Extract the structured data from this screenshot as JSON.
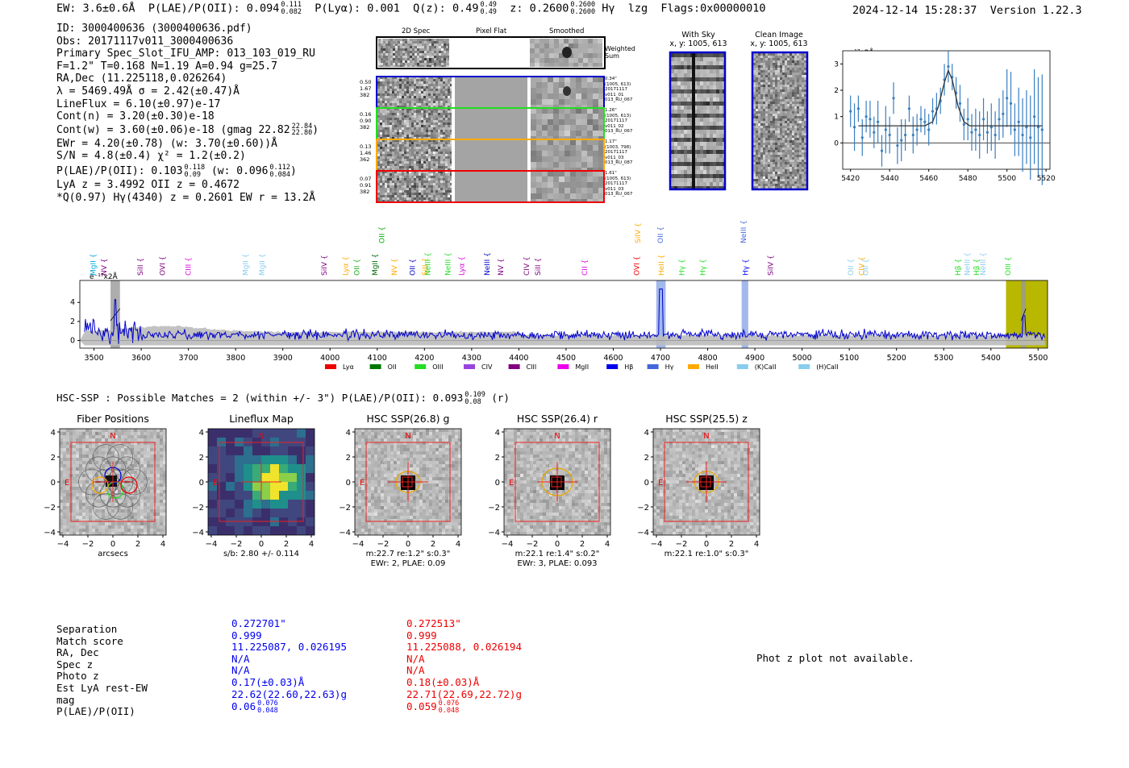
{
  "header": {
    "ew": "EW: 3.6±0.6Å",
    "plae_label": "P(LAE)/P(OII): 0.094",
    "plae_sup": "0.111",
    "plae_sub": "0.082",
    "plya": "P(Lyα): 0.001",
    "qz_label": "Q(z): 0.49",
    "qz_sup": "0.49",
    "qz_sub": "0.49",
    "z_label": "z: 0.2600",
    "z_sup": "0.2600",
    "z_sub": "0.2600",
    "line_name": "Hγ",
    "method": "lzg",
    "flags": "Flags:0x00000010",
    "datetime": "2024-12-14 15:28:37",
    "version": "Version 1.22.3"
  },
  "info_lines": [
    "ID: 3000400636 (3000400636.pdf)",
    "Obs: 20171117v011_3000400636",
    "Primary Spec_Slot_IFU_AMP: 013_103_019_RU",
    "F=1.2\"  T=0.168  N=1.19  A=0.94  g=25.7",
    "RA,Dec (11.225118,0.026264)",
    "λ = 5469.49Å  σ = 2.42(±0.47)Å",
    "LineFlux = 6.10(±0.97)e-17",
    "Cont(n) = 3.20(±0.30)e-18"
  ],
  "info_cont_w": {
    "text": "Cont(w) = 3.60(±0.06)e-18 (gmag 22.82",
    "sup": "22.84",
    "sub": "22.80",
    "close": ")"
  },
  "info_ewr": "EWr = 4.20(±0.78) (w: 3.70(±0.60))Å",
  "info_sn": "S/N = 4.8(±0.4)  χ² = 1.2(±0.2)",
  "info_plae": {
    "text": "P(LAE)/P(OII): 0.103",
    "sup": "0.118",
    "sub": "0.09",
    "w": "(w: 0.096",
    "w_sup": "0.112",
    "w_sub": "0.084",
    "close": ")"
  },
  "info_lya": "LyA z = 3.4992  OII z = 0.4672",
  "info_q": "*Q(0.97) Hγ(4340) z = 0.2601  EW r = 13.2Å",
  "cutout_titles": {
    "spec2d": "2D Spec",
    "pixflat": "Pixel Flat",
    "smoothed": "Smoothed",
    "weighted": "Weighted",
    "sum": "Sum"
  },
  "fibers": [
    {
      "left": [
        "0.50",
        "1.67",
        "382"
      ],
      "right": [
        "0.34\"",
        "(1005, 613)",
        "20171117",
        "v011_01",
        "013_RU_067"
      ],
      "color": "#0000cc"
    },
    {
      "left": [
        "0.16",
        "0.90",
        "382"
      ],
      "right": [
        "1.26\"",
        "(1005, 613)",
        "20171117",
        "v011_02",
        "013_RU_067"
      ],
      "color": "#22dd22"
    },
    {
      "left": [
        "0.13",
        "1.46",
        "362"
      ],
      "right": [
        "1.17\"",
        "(1003, 798)",
        "20171117",
        "v011_03",
        "013_RU_087"
      ],
      "color": "#ffaa00"
    },
    {
      "left": [
        "0.07",
        "0.91",
        "382"
      ],
      "right": [
        "1.61\"",
        "(1005, 613)",
        "20171117",
        "v011_03",
        "013_RU_067"
      ],
      "color": "#ee0000"
    }
  ],
  "sky_titles": {
    "with_sky": "With Sky",
    "with_sky_xy": "x, y: 1005, 613",
    "clean": "Clean Image",
    "clean_xy": "x, y: 1005, 613"
  },
  "zoom_unit": "e⁻¹⁷x2Å",
  "zoom_chart_data": {
    "type": "line",
    "xlim": [
      5416,
      5522
    ],
    "ylim": [
      -1.0,
      3.5
    ],
    "xticks": [
      5420,
      5440,
      5460,
      5480,
      5500,
      5520
    ],
    "yticks": [
      0,
      1,
      2,
      3
    ],
    "model": [
      [
        5424,
        0.65
      ],
      [
        5458,
        0.65
      ],
      [
        5462,
        0.8
      ],
      [
        5465,
        1.4
      ],
      [
        5468,
        2.3
      ],
      [
        5470,
        2.75
      ],
      [
        5472,
        2.4
      ],
      [
        5475,
        1.4
      ],
      [
        5478,
        0.8
      ],
      [
        5481,
        0.65
      ],
      [
        5518,
        0.65
      ]
    ],
    "points": [
      [
        5420,
        1.2,
        0.6
      ],
      [
        5422,
        0.6,
        0.9
      ],
      [
        5424,
        1.3,
        0.5
      ],
      [
        5426,
        0.2,
        0.7
      ],
      [
        5428,
        1.0,
        0.6
      ],
      [
        5430,
        0.9,
        0.7
      ],
      [
        5432,
        0.4,
        0.6
      ],
      [
        5434,
        0.8,
        0.8
      ],
      [
        5436,
        -0.3,
        0.6
      ],
      [
        5438,
        0.5,
        0.9
      ],
      [
        5440,
        0.3,
        0.7
      ],
      [
        5442,
        1.7,
        0.6
      ],
      [
        5444,
        -0.1,
        0.7
      ],
      [
        5446,
        0.1,
        0.8
      ],
      [
        5448,
        0.3,
        0.6
      ],
      [
        5450,
        1.3,
        0.5
      ],
      [
        5452,
        0.3,
        0.7
      ],
      [
        5454,
        0.5,
        0.6
      ],
      [
        5456,
        0.9,
        0.5
      ],
      [
        5458,
        0.8,
        0.5
      ],
      [
        5460,
        0.5,
        0.6
      ],
      [
        5462,
        1.2,
        0.5
      ],
      [
        5464,
        1.3,
        0.6
      ],
      [
        5466,
        1.6,
        0.5
      ],
      [
        5468,
        2.4,
        0.6
      ],
      [
        5470,
        2.9,
        0.6
      ],
      [
        5472,
        2.5,
        0.5
      ],
      [
        5474,
        1.9,
        0.6
      ],
      [
        5476,
        1.5,
        0.7
      ],
      [
        5478,
        0.7,
        0.6
      ],
      [
        5480,
        0.9,
        0.8
      ],
      [
        5482,
        0.4,
        0.7
      ],
      [
        5484,
        0.5,
        0.8
      ],
      [
        5486,
        0.3,
        0.9
      ],
      [
        5488,
        0.9,
        0.8
      ],
      [
        5490,
        0.4,
        0.8
      ],
      [
        5492,
        0.6,
        0.9
      ],
      [
        5494,
        0.3,
        0.9
      ],
      [
        5496,
        0.9,
        0.8
      ],
      [
        5498,
        1.1,
        0.9
      ],
      [
        5500,
        1.7,
        1.1
      ],
      [
        5502,
        1.5,
        1.2
      ],
      [
        5504,
        0.5,
        1.0
      ],
      [
        5506,
        0.8,
        1.3
      ],
      [
        5508,
        0.3,
        1.4
      ],
      [
        5510,
        0.6,
        1.4
      ],
      [
        5512,
        0.2,
        1.6
      ],
      [
        5514,
        1.0,
        1.8
      ],
      [
        5516,
        0.6,
        1.9
      ],
      [
        5518,
        0.5,
        2.1
      ]
    ]
  },
  "main_chart_data": {
    "type": "line",
    "unit": "e⁻¹⁷x2Å",
    "xlim": [
      3470,
      5520
    ],
    "ylim": [
      -0.8,
      6.3
    ],
    "xticks": [
      3500,
      3600,
      3700,
      3800,
      3900,
      4000,
      4100,
      4200,
      4300,
      4400,
      4500,
      4600,
      4700,
      4800,
      4900,
      5000,
      5100,
      5200,
      5300,
      5400,
      5500
    ],
    "yticks": [
      0,
      2,
      4
    ],
    "highlight_bands": [
      [
        4691,
        4711
      ],
      [
        4872,
        4886
      ]
    ],
    "line_marks": [
      {
        "name": "MgII",
        "x": 3498,
        "color": "#00aadd",
        "tier": 1
      },
      {
        "name": "NV",
        "x": 3521,
        "color": "#800080",
        "tier": 1
      },
      {
        "name": "SiII",
        "x": 3598,
        "color": "#800080",
        "tier": 1
      },
      {
        "name": "OVI",
        "x": 3645,
        "color": "#800080",
        "tier": 1
      },
      {
        "name": "CIII",
        "x": 3700,
        "color": "#dd00dd",
        "tier": 1
      },
      {
        "name": "MgII",
        "x": 3821,
        "color": "#88ccee",
        "tier": 1
      },
      {
        "name": "MgII",
        "x": 3856,
        "color": "#88ccee",
        "tier": 1
      },
      {
        "name": "SiIV",
        "x": 3988,
        "color": "#800080",
        "tier": 1
      },
      {
        "name": "Lyα",
        "x": 4033,
        "color": "#ffaa00",
        "tier": 1
      },
      {
        "name": "OII",
        "x": 4057,
        "color": "#22aa22",
        "tier": 1
      },
      {
        "name": "MgII",
        "x": 4095,
        "color": "#006600",
        "tier": 1
      },
      {
        "name": "OII",
        "x": 4110,
        "color": "#00aa00",
        "tier": 0
      },
      {
        "name": "NV",
        "x": 4136,
        "color": "#ffaa00",
        "tier": 1
      },
      {
        "name": "OII",
        "x": 4175,
        "color": "#0000cc",
        "tier": 1
      },
      {
        "name": "SiII",
        "x": 4201,
        "color": "#ffaa00",
        "tier": 1
      },
      {
        "name": "NeIII",
        "x": 4207,
        "color": "#22dd22",
        "tier": 1
      },
      {
        "name": "NeIII",
        "x": 4250,
        "color": "#22dd22",
        "tier": 1
      },
      {
        "name": "Lyα",
        "x": 4279,
        "color": "#dd00dd",
        "tier": 1
      },
      {
        "name": "NeIII",
        "x": 4333,
        "color": "#0000cc",
        "tier": 1
      },
      {
        "name": "NV",
        "x": 4362,
        "color": "#800080",
        "tier": 1
      },
      {
        "name": "CIV",
        "x": 4416,
        "color": "#800080",
        "tier": 1
      },
      {
        "name": "SiII",
        "x": 4440,
        "color": "#800080",
        "tier": 1
      },
      {
        "name": "CII",
        "x": 4539,
        "color": "#dd00dd",
        "tier": 1
      },
      {
        "name": "OVI",
        "x": 4650,
        "color": "#ee0000",
        "tier": 1
      },
      {
        "name": "SiIV",
        "x": 4652,
        "color": "#ffaa00",
        "tier": 0
      },
      {
        "name": "OII",
        "x": 4700,
        "color": "#4466dd",
        "tier": 0
      },
      {
        "name": "HeII",
        "x": 4702,
        "color": "#ffaa00",
        "tier": 1
      },
      {
        "name": "Hγ",
        "x": 4745,
        "color": "#22dd22",
        "tier": 1
      },
      {
        "name": "Hγ",
        "x": 4790,
        "color": "#22dd22",
        "tier": 1
      },
      {
        "name": "NeIII",
        "x": 4876,
        "color": "#4466dd",
        "tier": 0
      },
      {
        "name": "Hγ",
        "x": 4880,
        "color": "#0000ee",
        "tier": 1
      },
      {
        "name": "SiIV",
        "x": 4933,
        "color": "#800080",
        "tier": 1
      },
      {
        "name": "OII",
        "x": 5103,
        "color": "#88ccee",
        "tier": 1
      },
      {
        "name": "CIV",
        "x": 5126,
        "color": "#ffaa00",
        "tier": 1
      },
      {
        "name": "OII",
        "x": 5135,
        "color": "#88ccee",
        "tier": 1
      },
      {
        "name": "Hβ",
        "x": 5330,
        "color": "#22dd22",
        "tier": 1
      },
      {
        "name": "NeIII",
        "x": 5350,
        "color": "#88ccee",
        "tier": 1
      },
      {
        "name": "Hβ",
        "x": 5370,
        "color": "#22dd22",
        "tier": 1
      },
      {
        "name": "NeIII",
        "x": 5383,
        "color": "#88ccee",
        "tier": 1
      },
      {
        "name": "OIII",
        "x": 5436,
        "color": "#22dd22",
        "tier": 1
      }
    ],
    "legend": [
      {
        "label": "Lyα",
        "color": "#ee0000"
      },
      {
        "label": "OII",
        "color": "#007700"
      },
      {
        "label": "OIII",
        "color": "#22dd22"
      },
      {
        "label": "CIV",
        "color": "#9944dd"
      },
      {
        "label": "CIII",
        "color": "#800080"
      },
      {
        "label": "MgII",
        "color": "#ee00ee"
      },
      {
        "label": "Hβ",
        "color": "#0000ee"
      },
      {
        "label": "Hγ",
        "color": "#4466dd"
      },
      {
        "label": "HeII",
        "color": "#ffaa00"
      },
      {
        "label": "(K)CaII",
        "color": "#88ccee"
      },
      {
        "label": "(H)CaII",
        "color": "#88ccee"
      }
    ]
  },
  "hsc_line": {
    "text": "HSC-SSP : Possible Matches = 2 (within +/- 3\")  P(LAE)/P(OII): 0.093",
    "sup": "0.109",
    "sub": "0.08",
    "band": "(r)"
  },
  "imgpanels": [
    {
      "title": "Fiber Positions",
      "cap1": "arcsecs",
      "cap2": ""
    },
    {
      "title": "Lineflux Map",
      "cap1": "s/b: 2.80 +/- 0.114",
      "cap2": ""
    },
    {
      "title": "HSC SSP(26.8) g",
      "cap1": "m:22.7  re:1.2\"  s:0.3\"",
      "cap2": "EWr: 2, PLAE: 0.09"
    },
    {
      "title": "HSC SSP(26.4) r",
      "cap1": "m:22.1  re:1.4\"  s:0.2\"",
      "cap2": "EWr: 3, PLAE: 0.093"
    },
    {
      "title": "HSC SSP(25.5) z",
      "cap1": "m:22.1  re:1.0\"  s:0.3\"",
      "cap2": ""
    }
  ],
  "img_axis": {
    "ticks": [
      "−4",
      "−2",
      "0",
      "2",
      "4"
    ],
    "north": "N",
    "east": "E"
  },
  "match_table": {
    "labels": [
      "Separation",
      "Match score",
      "RA, Dec",
      "Spec z",
      "Photo z",
      "Est LyA rest-EW",
      "mag",
      "P(LAE)/P(OII)"
    ],
    "col1": [
      "0.272701\"",
      "0.999",
      "11.225087, 0.026195",
      "N/A",
      "N/A",
      "0.17(±0.03)Å",
      "22.62(22.60,22.63)g"
    ],
    "col1_plae": {
      "val": "0.06",
      "sup": "0.076",
      "sub": "0.048"
    },
    "col2": [
      "0.272513\"",
      "0.999",
      "11.225088, 0.026194",
      "N/A",
      "N/A",
      "0.18(±0.03)Å",
      "22.71(22.69,22.72)g"
    ],
    "col2_plae": {
      "val": "0.059",
      "sup": "0.076",
      "sub": "0.048"
    }
  },
  "photz_msg": "Phot z plot not available.",
  "colors": {
    "spec_blue": "#0000cc",
    "sky_gray": "#bbbbbb",
    "band_olive": "#b8b800",
    "model_gray": "#333333"
  }
}
